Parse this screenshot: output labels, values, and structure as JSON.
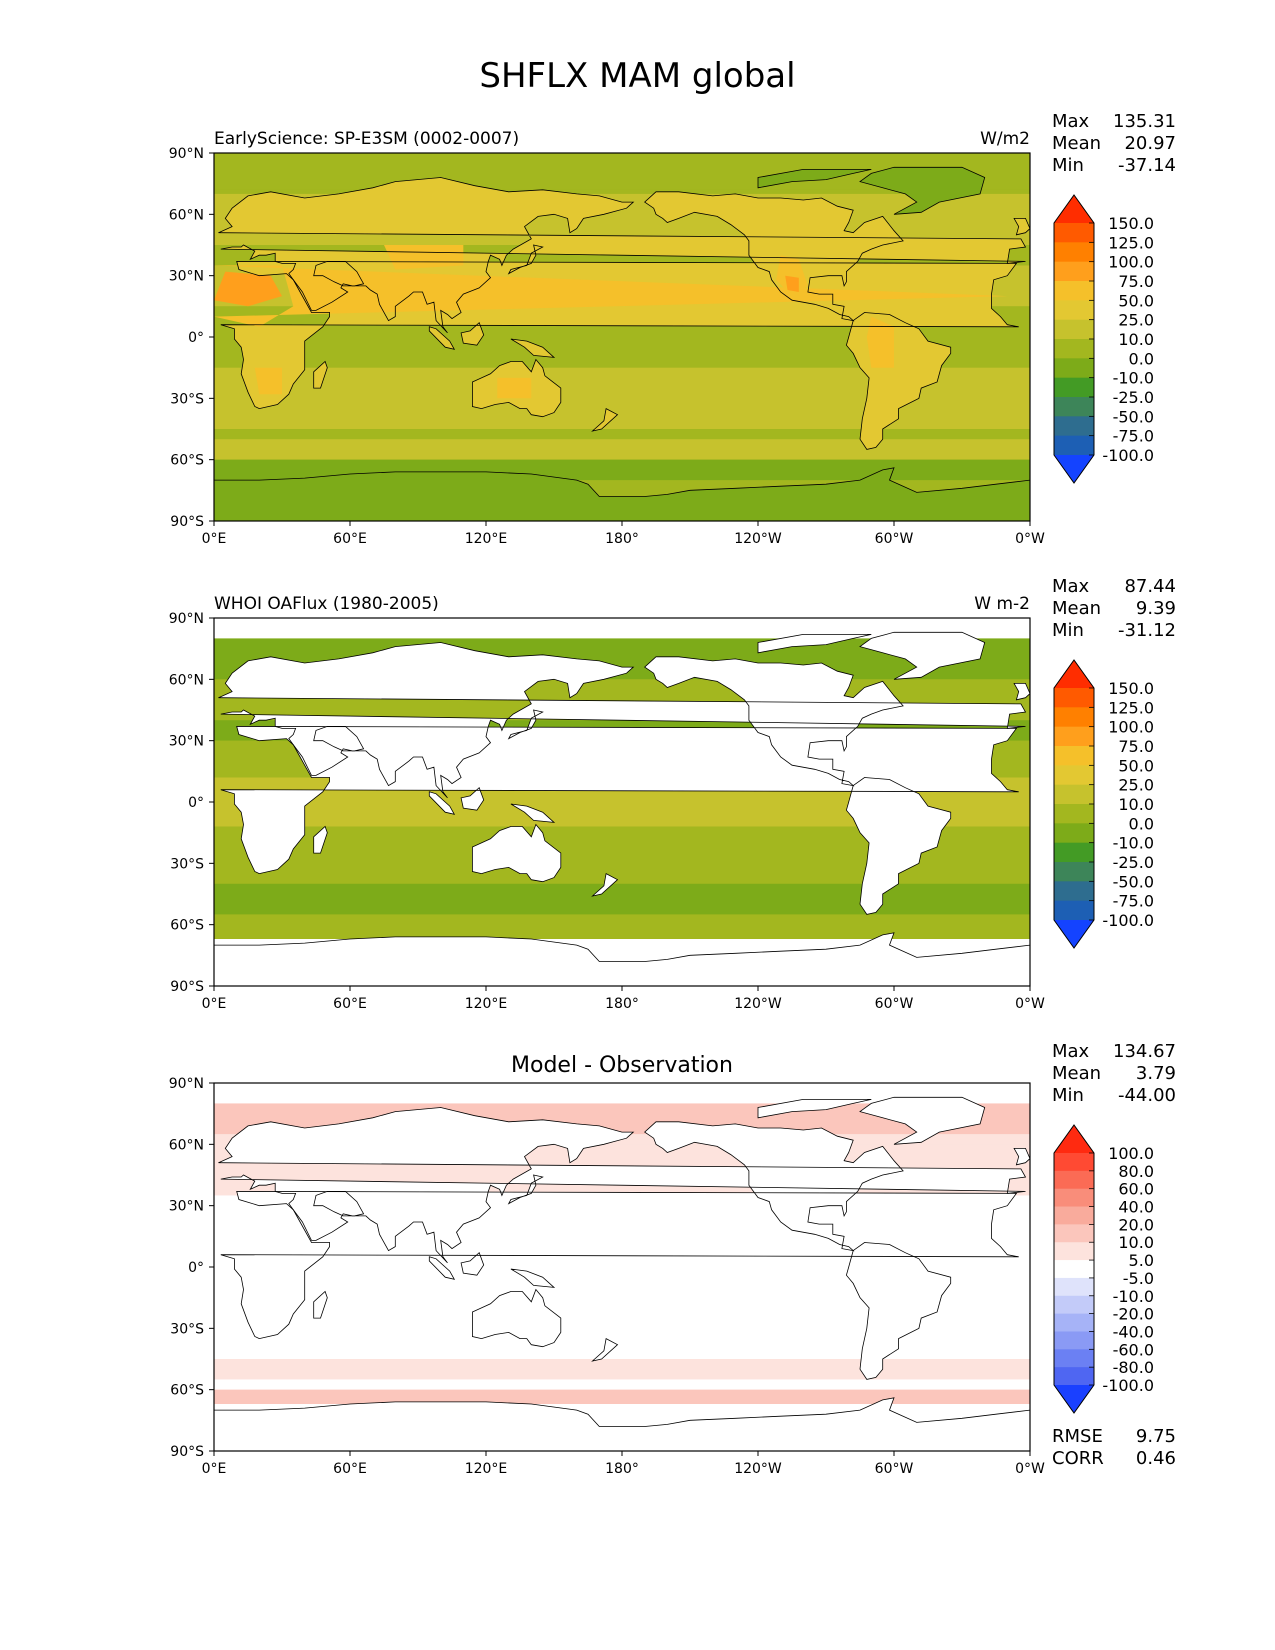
{
  "title": "SHFLX MAM global",
  "colors": {
    "land": "#ffffff",
    "coast": "#000000",
    "frame": "#000000"
  },
  "chart_data": [
    {
      "type": "heatmap",
      "name": "model",
      "left_title": "EarlyScience: SP-E3SM (0002-0007)",
      "center_title": "",
      "units": "W/m2",
      "stats": [
        {
          "label": "Max",
          "value": "135.31"
        },
        {
          "label": "Mean",
          "value": "20.97"
        },
        {
          "label": "Min",
          "value": "-37.14"
        }
      ],
      "metrics": [],
      "xlabels": [
        "0°E",
        "60°E",
        "120°E",
        "180°",
        "120°W",
        "60°W",
        "0°W"
      ],
      "ylabels": [
        "90°N",
        "60°N",
        "30°N",
        "0°",
        "30°S",
        "60°S",
        "90°S"
      ],
      "xlim": [
        0,
        360
      ],
      "ylim": [
        -90,
        90
      ],
      "levels": [
        "150.0",
        "125.0",
        "100.0",
        "75.0",
        "50.0",
        "25.0",
        "10.0",
        "0.0",
        "-10.0",
        "-25.0",
        "-50.0",
        "-75.0",
        "-100.0"
      ],
      "colors": [
        "#ff2d00",
        "#ff5a00",
        "#ff8000",
        "#ff9f1c",
        "#f5c02a",
        "#e3c832",
        "#c6c22d",
        "#a3b71f",
        "#7dab19",
        "#439b25",
        "#3d8559",
        "#2e6d8f",
        "#1d5fb4",
        "#1443ff"
      ],
      "ocean_index": 7,
      "land_index": 5,
      "ocean_only": false
    },
    {
      "type": "heatmap",
      "name": "observation",
      "left_title": "WHOI OAFlux (1980-2005)",
      "center_title": "",
      "units": "W m-2",
      "stats": [
        {
          "label": "Max",
          "value": "87.44"
        },
        {
          "label": "Mean",
          "value": "9.39"
        },
        {
          "label": "Min",
          "value": "-31.12"
        }
      ],
      "metrics": [],
      "xlabels": [
        "0°E",
        "60°E",
        "120°E",
        "180°",
        "120°W",
        "60°W",
        "0°W"
      ],
      "ylabels": [
        "90°N",
        "60°N",
        "30°N",
        "0°",
        "30°S",
        "60°S",
        "90°S"
      ],
      "xlim": [
        0,
        360
      ],
      "ylim": [
        -90,
        90
      ],
      "levels": [
        "150.0",
        "125.0",
        "100.0",
        "75.0",
        "50.0",
        "25.0",
        "10.0",
        "0.0",
        "-10.0",
        "-25.0",
        "-50.0",
        "-75.0",
        "-100.0"
      ],
      "colors": [
        "#ff2d00",
        "#ff5a00",
        "#ff8000",
        "#ff9f1c",
        "#f5c02a",
        "#e3c832",
        "#c6c22d",
        "#a3b71f",
        "#7dab19",
        "#439b25",
        "#3d8559",
        "#2e6d8f",
        "#1d5fb4",
        "#1443ff"
      ],
      "ocean_index": 7,
      "land_index": 5,
      "ocean_only": true,
      "lat_coverage": [
        -67,
        80
      ]
    },
    {
      "type": "heatmap",
      "name": "difference",
      "left_title": "",
      "center_title": "Model - Observation",
      "units": "",
      "stats": [
        {
          "label": "Max",
          "value": "134.67"
        },
        {
          "label": "Mean",
          "value": "3.79"
        },
        {
          "label": "Min",
          "value": "-44.00"
        }
      ],
      "metrics": [
        {
          "label": "RMSE",
          "value": "9.75"
        },
        {
          "label": "CORR",
          "value": "0.46"
        }
      ],
      "xlabels": [
        "0°E",
        "60°E",
        "120°E",
        "180°",
        "120°W",
        "60°W",
        "0°W"
      ],
      "ylabels": [
        "90°N",
        "60°N",
        "30°N",
        "0°",
        "30°S",
        "60°S",
        "90°S"
      ],
      "xlim": [
        0,
        360
      ],
      "ylim": [
        -90,
        90
      ],
      "levels": [
        "100.0",
        "80.0",
        "60.0",
        "40.0",
        "20.0",
        "10.0",
        "5.0",
        "-5.0",
        "-10.0",
        "-20.0",
        "-40.0",
        "-60.0",
        "-80.0",
        "-100.0"
      ],
      "colors": [
        "#ff2a10",
        "#ff4a33",
        "#fb6b55",
        "#f98d7a",
        "#f9ab9c",
        "#fbc6bc",
        "#fde3dd",
        "#ffffff",
        "#dfe3fb",
        "#c3cbf9",
        "#a6b3f7",
        "#8a9af5",
        "#6b80f3",
        "#4f66f2",
        "#1a40ff"
      ],
      "ocean_index": 6,
      "land_index": 7,
      "ocean_only": true,
      "lat_coverage": [
        -67,
        80
      ]
    }
  ]
}
